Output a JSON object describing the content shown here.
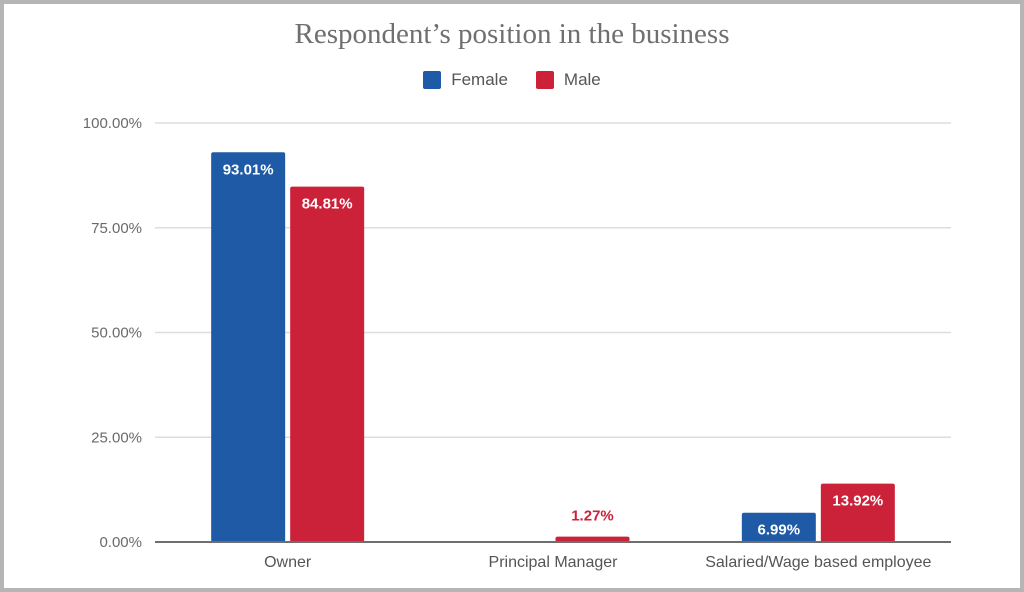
{
  "chart_data": {
    "type": "bar",
    "title": "Respondent’s position in the business",
    "categories": [
      "Owner",
      "Principal Manager",
      "Salaried/Wage based employee"
    ],
    "series": [
      {
        "name": "Female",
        "color": "#1f5aa6",
        "values": [
          93.01,
          null,
          6.99
        ],
        "labels": [
          "93.01%",
          "",
          "6.99%"
        ]
      },
      {
        "name": "Male",
        "color": "#cc2239",
        "values": [
          84.81,
          1.27,
          13.92
        ],
        "labels": [
          "84.81%",
          "1.27%",
          "13.92%"
        ]
      }
    ],
    "ylim": [
      0,
      100
    ],
    "yticks": [
      0,
      25,
      50,
      75,
      100
    ],
    "ytick_labels": [
      "0.00%",
      "25.00%",
      "50.00%",
      "75.00%",
      "100.00%"
    ],
    "legend_position": "top-center",
    "grid": true
  }
}
